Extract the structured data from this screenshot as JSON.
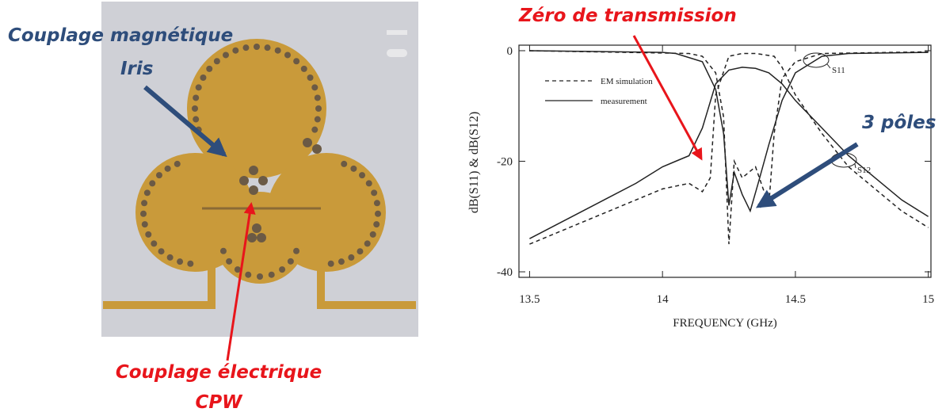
{
  "annotations": {
    "magnetic_line1": "Couplage magnétique",
    "magnetic_line2": "Iris",
    "zero": "Zéro de transmission",
    "poles": "3 pôles",
    "electric_line1": "Couplage électrique",
    "electric_line2": "CPW"
  },
  "chart_data": {
    "type": "line",
    "xlabel": "FREQUENCY (GHz)",
    "ylabel": "dB(S11) & dB(S12)",
    "xlim": [
      13.46,
      15.01
    ],
    "ylim": [
      -41,
      1
    ],
    "xticks": [
      13.5,
      14,
      14.5,
      15
    ],
    "yticks": [
      0,
      -20,
      -40
    ],
    "grid": false,
    "legend": [
      {
        "label": "EM simulation",
        "dash": "dashed"
      },
      {
        "label": "measurement",
        "dash": "solid"
      }
    ],
    "curve_labels": [
      "S11",
      "S12"
    ],
    "series": [
      {
        "dash": "solid",
        "color": "#222222",
        "x": [
          13.5,
          13.7,
          13.9,
          14.0,
          14.05,
          14.1,
          14.15,
          14.2,
          14.25,
          14.3,
          14.35,
          14.4,
          14.45,
          14.5,
          14.6,
          14.7,
          14.8,
          14.9,
          15.0
        ],
        "values": [
          -34,
          -29,
          -24,
          -21,
          -20,
          -19,
          -14,
          -6,
          -3.5,
          -3,
          -3.2,
          -4,
          -6,
          -9,
          -14,
          -19,
          -23,
          -27,
          -30
        ]
      },
      {
        "dash": "dashed",
        "color": "#222222",
        "x": [
          13.5,
          13.7,
          13.9,
          14.0,
          14.1,
          14.15,
          14.18,
          14.2,
          14.25,
          14.3,
          14.35,
          14.42,
          14.45,
          14.5,
          14.6,
          14.7,
          14.8,
          14.9,
          15.0
        ],
        "values": [
          -35,
          -31,
          -27,
          -25,
          -24,
          -25.5,
          -23,
          -8,
          -1,
          -0.5,
          -0.5,
          -1,
          -3,
          -8,
          -15,
          -21,
          -25,
          -29,
          -32
        ]
      },
      {
        "dash": "solid",
        "color": "#222222",
        "x": [
          13.5,
          14.0,
          14.05,
          14.15,
          14.2,
          14.23,
          14.25,
          14.27,
          14.3,
          14.33,
          14.36,
          14.4,
          14.45,
          14.5,
          14.6,
          14.7,
          15.0
        ],
        "values": [
          0,
          -0.3,
          -0.5,
          -2,
          -7,
          -15,
          -28,
          -22,
          -26,
          -29,
          -24,
          -17,
          -9,
          -4,
          -1,
          -0.5,
          -0.3
        ]
      },
      {
        "dash": "dashed",
        "color": "#222222",
        "x": [
          13.5,
          14.1,
          14.15,
          14.2,
          14.23,
          14.25,
          14.27,
          14.3,
          14.35,
          14.4,
          14.42,
          14.45,
          14.5,
          14.6,
          15.0
        ],
        "values": [
          0,
          -0.5,
          -1,
          -4,
          -12,
          -35,
          -20,
          -23,
          -21,
          -28,
          -15,
          -5,
          -2,
          -0.5,
          -0.2
        ]
      }
    ]
  }
}
